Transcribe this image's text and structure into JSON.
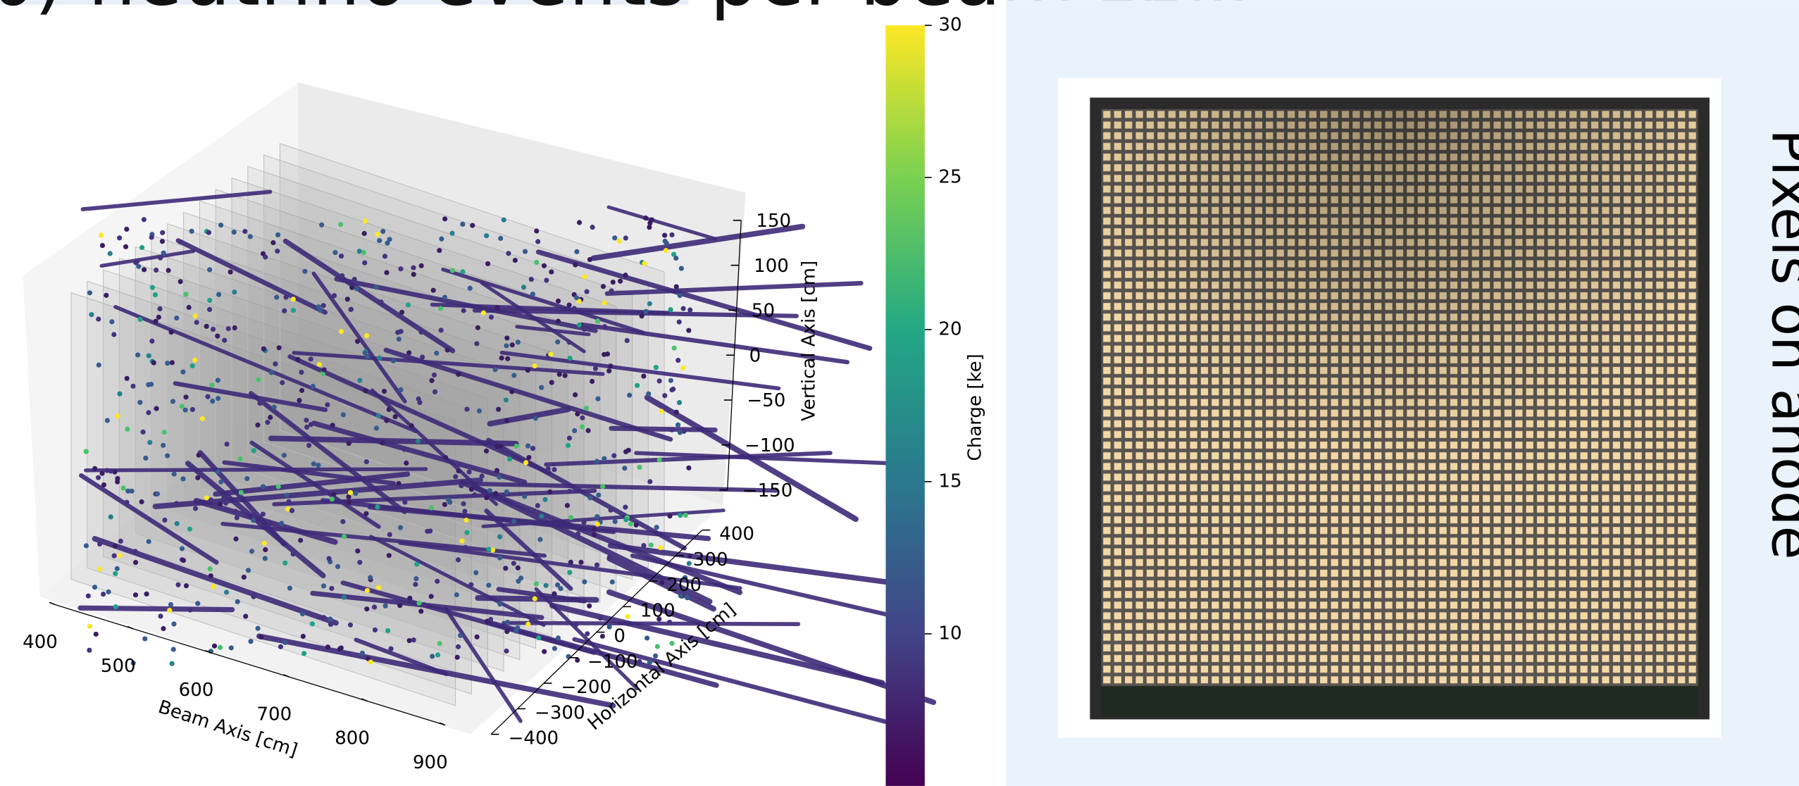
{
  "panel_b": {
    "title": "b) neutrino events per beam spill",
    "beam_axis": {
      "label": "Beam Axis [cm]",
      "lim": [
        400,
        900
      ],
      "ticks": [
        400,
        500,
        600,
        700,
        800,
        900
      ]
    },
    "horizontal_axis": {
      "label": "Horizontal Axis [cm]",
      "lim": [
        -400,
        400
      ],
      "ticks": [
        {
          "value": -400,
          "label": "−400"
        },
        {
          "value": -300,
          "label": "−300"
        },
        {
          "value": -200,
          "label": "−200"
        },
        {
          "value": -100,
          "label": "−100"
        },
        0,
        100,
        200,
        300,
        400
      ]
    },
    "vertical_axis": {
      "label": "Vertical Axis [cm]",
      "lim": [
        -150,
        150
      ],
      "ticks": [
        {
          "value": -150,
          "label": "−150"
        },
        {
          "value": -100,
          "label": "−100"
        },
        {
          "value": -50,
          "label": "−50"
        },
        0,
        50,
        100,
        150
      ]
    },
    "colorbar": {
      "label": "Charge [ke]",
      "lim": [
        5,
        30
      ],
      "ticks": [
        10,
        15,
        20,
        25,
        30
      ]
    }
  },
  "panel_c": {
    "label": "Pixels on anode"
  }
}
